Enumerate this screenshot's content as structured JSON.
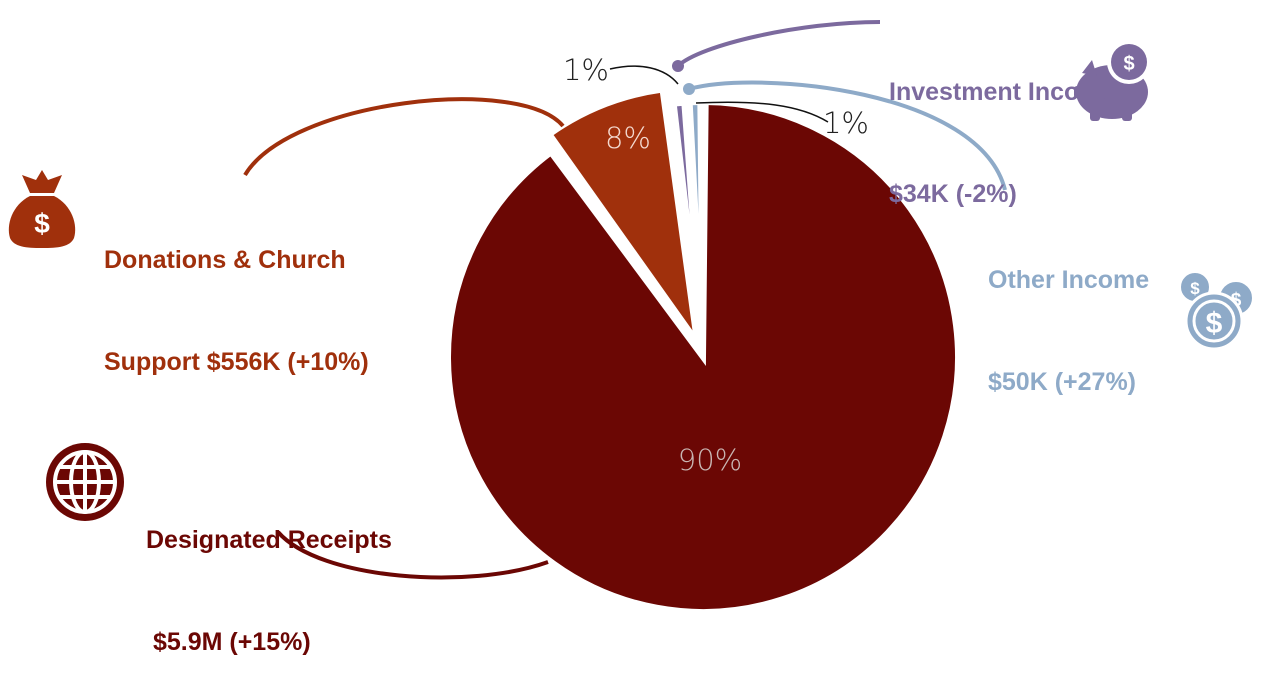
{
  "chart_data": {
    "type": "pie",
    "slices": [
      {
        "name": "Designated Receipts",
        "percent": 90,
        "label": "90%",
        "amount": "$5.9M",
        "change": "(+15%)",
        "color": "#6b0704",
        "icon": "globe-icon"
      },
      {
        "name": "Donations & Church Support",
        "percent": 8,
        "label": "8%",
        "amount": "$556K",
        "change": "(+10%)",
        "color": "#a0300c",
        "icon": "money-bag-icon"
      },
      {
        "name": "Investment Income",
        "percent": 1,
        "label": "1%",
        "amount": "$34K",
        "change": "(-2%)",
        "color": "#7c6a9e",
        "icon": "piggy-bank-icon"
      },
      {
        "name": "Other Income",
        "percent": 1,
        "label": "1%",
        "amount": "$50K",
        "change": "(+27%)",
        "color": "#8eaac8",
        "icon": "coins-icon"
      }
    ]
  },
  "labels": {
    "designated": {
      "line1": "Designated Receipts",
      "line2": " $5.9M (+15%)"
    },
    "donations": {
      "line1": "Donations & Church",
      "line2": "Support $556K (+10%)"
    },
    "investment": {
      "line1": "Investment Income",
      "line2": "$34K (-2%)"
    },
    "other": {
      "line1": "Other Income",
      "line2": "$50K (+27%)"
    }
  }
}
